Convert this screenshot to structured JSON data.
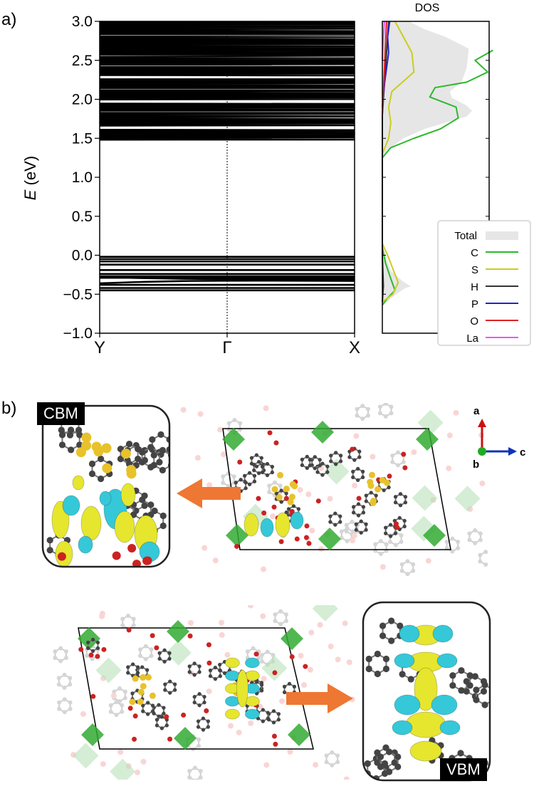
{
  "panel_a_label": "a)",
  "panel_b_label": "b)",
  "chart_data": [
    {
      "type": "line",
      "subtype": "band-structure",
      "ylabel_italic": "E",
      "ylabel_unit": " (eV)",
      "ylim": [
        -1.0,
        3.0
      ],
      "yticks": [
        "3.0",
        "2.5",
        "2.0",
        "1.5",
        "1.0",
        "0.5",
        "0.0",
        "−0.5",
        "−1.0"
      ],
      "ytick_values": [
        3.0,
        2.5,
        2.0,
        1.5,
        1.0,
        0.5,
        0.0,
        -0.5,
        -1.0
      ],
      "k_labels": [
        "Y",
        "Γ",
        "X"
      ],
      "valence_bands": [
        -0.02,
        -0.05,
        -0.08,
        -0.12,
        -0.19,
        -0.24,
        -0.27,
        -0.29,
        -0.31,
        -0.35,
        -0.38,
        -0.42,
        -0.45
      ],
      "conduction_band_min": 1.48,
      "conduction_band_max": 3.0,
      "band_color": "#000000"
    },
    {
      "type": "line",
      "subtype": "density-of-states",
      "title": "DOS",
      "ylim": [
        -1.0,
        3.0
      ],
      "legend_placement": "bottom-right",
      "series": [
        {
          "name": "Total",
          "color": "#e6e6e6",
          "style": "filled",
          "points": [
            [
              0.0,
              -0.62
            ],
            [
              0.04,
              -0.6
            ],
            [
              0.13,
              -0.5
            ],
            [
              0.22,
              -0.42
            ],
            [
              0.27,
              -0.4
            ],
            [
              0.2,
              -0.34
            ],
            [
              0.08,
              -0.2
            ],
            [
              0.03,
              0.0
            ],
            [
              0.0,
              0.15
            ],
            [
              0.0,
              1.25
            ],
            [
              0.05,
              1.35
            ],
            [
              0.2,
              1.5
            ],
            [
              0.4,
              1.62
            ],
            [
              0.6,
              1.7
            ],
            [
              0.8,
              1.78
            ],
            [
              0.85,
              1.85
            ],
            [
              0.8,
              1.92
            ],
            [
              0.66,
              2.02
            ],
            [
              0.64,
              2.1
            ],
            [
              0.75,
              2.22
            ],
            [
              0.8,
              2.4
            ],
            [
              0.82,
              2.65
            ],
            [
              0.6,
              2.8
            ],
            [
              0.4,
              2.9
            ],
            [
              0.25,
              3.0
            ]
          ]
        },
        {
          "name": "C",
          "color": "#2db82d",
          "points": [
            [
              0.0,
              -0.64
            ],
            [
              0.05,
              -0.55
            ],
            [
              0.12,
              -0.45
            ],
            [
              0.08,
              -0.3
            ],
            [
              0.03,
              -0.1
            ],
            [
              0.0,
              0.1
            ],
            [
              0.0,
              1.25
            ],
            [
              0.08,
              1.38
            ],
            [
              0.3,
              1.5
            ],
            [
              0.55,
              1.62
            ],
            [
              0.72,
              1.76
            ],
            [
              0.7,
              1.9
            ],
            [
              0.45,
              2.03
            ],
            [
              0.5,
              2.15
            ],
            [
              0.8,
              2.22
            ],
            [
              1.0,
              2.35
            ],
            [
              0.88,
              2.5
            ],
            [
              1.05,
              2.63
            ]
          ]
        },
        {
          "name": "S",
          "color": "#cccc22",
          "points": [
            [
              0.0,
              -0.6
            ],
            [
              0.1,
              -0.5
            ],
            [
              0.15,
              -0.35
            ],
            [
              0.05,
              0.0
            ],
            [
              0.0,
              0.15
            ],
            [
              0.0,
              1.3
            ],
            [
              0.06,
              1.5
            ],
            [
              0.08,
              1.7
            ],
            [
              0.06,
              1.9
            ],
            [
              0.09,
              2.1
            ],
            [
              0.3,
              2.35
            ],
            [
              0.28,
              2.6
            ],
            [
              0.2,
              2.8
            ],
            [
              0.12,
              3.0
            ]
          ]
        },
        {
          "name": "H",
          "color": "#333333",
          "points": [
            [
              0.0,
              -0.6
            ],
            [
              0.01,
              -0.4
            ],
            [
              0.0,
              0.0
            ],
            [
              0.0,
              1.8
            ],
            [
              0.02,
              2.2
            ],
            [
              0.04,
              2.6
            ],
            [
              0.06,
              3.0
            ]
          ]
        },
        {
          "name": "P",
          "color": "#2222cc",
          "points": [
            [
              0.0,
              1.9
            ],
            [
              0.02,
              2.2
            ],
            [
              0.04,
              2.4
            ],
            [
              0.06,
              2.6
            ],
            [
              0.05,
              2.8
            ],
            [
              0.07,
              3.0
            ]
          ]
        },
        {
          "name": "O",
          "color": "#dd2222",
          "points": [
            [
              0.0,
              1.8
            ],
            [
              0.01,
              2.1
            ],
            [
              0.02,
              2.4
            ],
            [
              0.03,
              2.7
            ],
            [
              0.04,
              3.0
            ]
          ]
        },
        {
          "name": "La",
          "color": "#ee55ee",
          "points": [
            [
              0.0,
              2.5
            ],
            [
              0.01,
              2.8
            ],
            [
              0.02,
              3.0
            ]
          ]
        }
      ]
    }
  ],
  "panel_b": {
    "cbm_label": "CBM",
    "vbm_label": "VBM",
    "axes": {
      "a": "a",
      "b": "b",
      "c": "c",
      "a_color": "#cc1111",
      "c_color": "#1133bb",
      "b_color": "#22aa22"
    },
    "arrow_color": "#ee7733",
    "isosurface_colors": {
      "positive": "#e6e62e",
      "negative": "#35c8d8"
    },
    "atom_colors": {
      "carbon": "#444444",
      "oxygen": "#cc2222",
      "sulfur": "#e8c22a",
      "lanthanum": "#33aa33"
    }
  }
}
